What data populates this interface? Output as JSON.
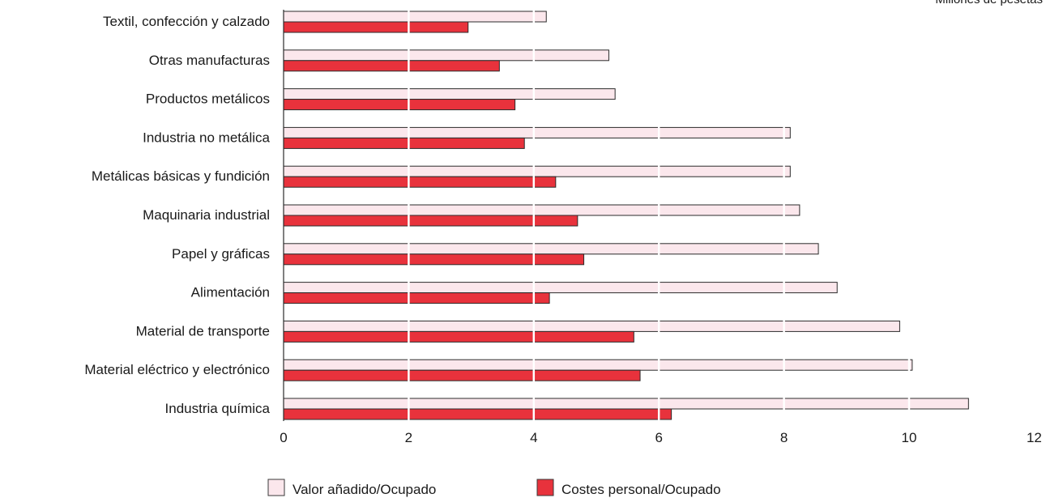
{
  "chart_data": {
    "type": "bar",
    "orientation": "horizontal",
    "unit_label": "Millones de pesetas",
    "categories": [
      "Textil, confección y calzado",
      "Otras manufacturas",
      "Productos metálicos",
      "Industria no metálica",
      "Metálicas básicas y fundición",
      "Maquinaria industrial",
      "Papel y gráficas",
      "Alimentación",
      "Material de transporte",
      "Material eléctrico y electrónico",
      "Industria química"
    ],
    "series": [
      {
        "name": "Valor añadido/Ocupado",
        "color": "#fbe7ec",
        "values": [
          4.2,
          5.2,
          5.3,
          8.1,
          8.1,
          8.25,
          8.55,
          8.85,
          9.85,
          10.05,
          10.95
        ]
      },
      {
        "name": "Costes personal/Ocupado",
        "color": "#e8323c",
        "values": [
          2.95,
          3.45,
          3.7,
          3.85,
          4.35,
          4.7,
          4.8,
          4.25,
          5.6,
          5.7,
          6.2
        ]
      }
    ],
    "xlim": [
      0,
      12
    ],
    "xticks": [
      0,
      2,
      4,
      6,
      8,
      10,
      12
    ],
    "grid": "vertical white gridlines over bars",
    "legend_placement": "bottom"
  }
}
